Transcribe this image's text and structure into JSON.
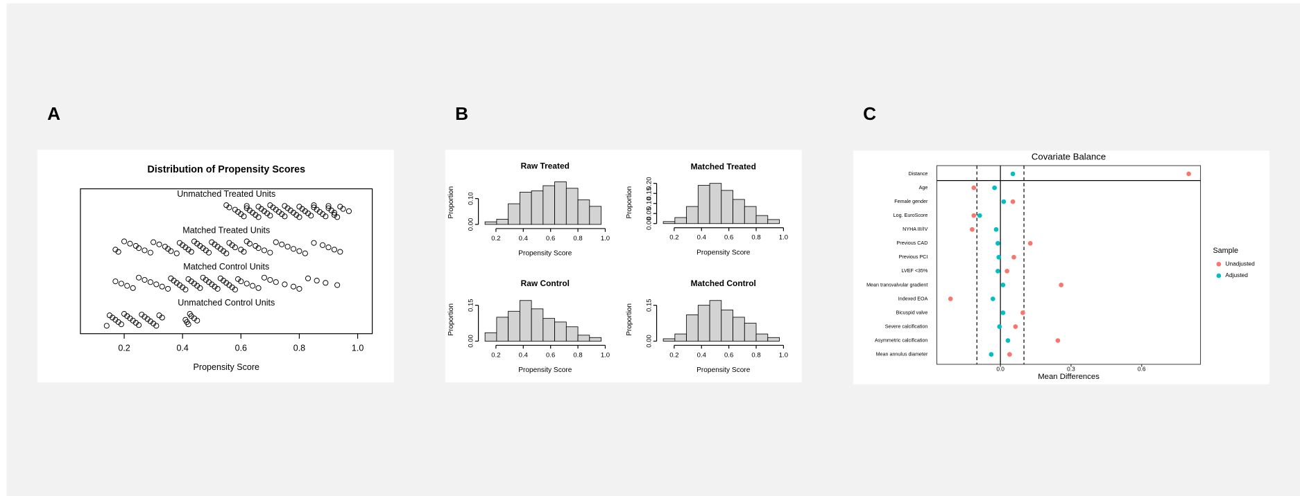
{
  "panel_labels": [
    "A",
    "B",
    "C"
  ],
  "chart_data": [
    {
      "type": "strip",
      "title": "Distribution of Propensity Scores",
      "x_label": "Propensity Score",
      "xlim": [
        0.05,
        1.05
      ],
      "xticks": [
        0.2,
        0.4,
        0.6,
        0.8,
        {
          "value": 1.0,
          "label": "1.0"
        }
      ],
      "series": [
        {
          "name": "Unmatched Treated Units",
          "color": "#000000",
          "values": [
            0.55,
            0.56,
            0.58,
            0.59,
            0.6,
            0.61,
            0.62,
            0.62,
            0.63,
            0.64,
            0.65,
            0.66,
            0.66,
            0.67,
            0.68,
            0.69,
            0.7,
            0.7,
            0.71,
            0.72,
            0.73,
            0.74,
            0.75,
            0.75,
            0.76,
            0.77,
            0.78,
            0.79,
            0.8,
            0.8,
            0.81,
            0.82,
            0.83,
            0.84,
            0.85,
            0.85,
            0.86,
            0.87,
            0.88,
            0.89,
            0.9,
            0.9,
            0.91,
            0.92,
            0.92,
            0.93,
            0.94,
            0.95,
            0.97
          ]
        },
        {
          "name": "Matched Treated Units",
          "color": "#000000",
          "values": [
            0.17,
            0.18,
            0.2,
            0.22,
            0.24,
            0.25,
            0.27,
            0.29,
            0.3,
            0.32,
            0.34,
            0.35,
            0.36,
            0.38,
            0.39,
            0.4,
            0.41,
            0.42,
            0.43,
            0.44,
            0.45,
            0.46,
            0.47,
            0.48,
            0.49,
            0.5,
            0.51,
            0.52,
            0.53,
            0.54,
            0.55,
            0.56,
            0.57,
            0.58,
            0.6,
            0.61,
            0.62,
            0.63,
            0.65,
            0.66,
            0.68,
            0.7,
            0.72,
            0.74,
            0.76,
            0.78,
            0.8,
            0.82,
            0.85,
            0.88,
            0.9,
            0.92,
            0.94
          ]
        },
        {
          "name": "Matched Control Units",
          "color": "#000000",
          "values": [
            0.17,
            0.19,
            0.21,
            0.23,
            0.25,
            0.27,
            0.29,
            0.31,
            0.33,
            0.35,
            0.36,
            0.37,
            0.38,
            0.39,
            0.4,
            0.41,
            0.42,
            0.43,
            0.44,
            0.45,
            0.46,
            0.47,
            0.48,
            0.49,
            0.5,
            0.51,
            0.52,
            0.53,
            0.54,
            0.55,
            0.56,
            0.57,
            0.58,
            0.59,
            0.6,
            0.62,
            0.64,
            0.66,
            0.68,
            0.7,
            0.72,
            0.75,
            0.78,
            0.8,
            0.83,
            0.86,
            0.89,
            0.93
          ]
        },
        {
          "name": "Unmatched Control Units",
          "color": "#000000",
          "values": [
            0.14,
            0.15,
            0.16,
            0.17,
            0.18,
            0.19,
            0.2,
            0.21,
            0.22,
            0.23,
            0.24,
            0.25,
            0.26,
            0.27,
            0.28,
            0.29,
            0.3,
            0.31,
            0.32,
            0.33,
            0.41,
            0.415,
            0.42,
            0.425,
            0.43,
            0.44,
            0.45
          ]
        }
      ]
    },
    {
      "type": "histogram",
      "title": "Raw Treated",
      "x_label": "Propensity Score",
      "y_label": "Proportion",
      "color": "#d3d3d3",
      "bins": [
        0.12,
        0.205,
        0.29,
        0.375,
        0.46,
        0.545,
        0.63,
        0.715,
        0.8,
        0.885,
        0.97
      ],
      "values": [
        0.01,
        0.02,
        0.08,
        0.125,
        0.13,
        0.15,
        0.165,
        0.14,
        0.095,
        0.07
      ],
      "xlim": [
        0.12,
        1.0
      ],
      "xticks": [
        0.2,
        0.4,
        0.6,
        0.8,
        {
          "value": 1.0,
          "label": "1.0"
        }
      ],
      "ylim": [
        0,
        0.17
      ],
      "yticks": [
        {
          "value": 0,
          "label": "0.00"
        },
        {
          "value": 0.1,
          "label": "0.10"
        }
      ]
    },
    {
      "type": "histogram",
      "title": "Matched Treated",
      "x_label": "Propensity Score",
      "y_label": "Proportion",
      "color": "#d3d3d3",
      "bins": [
        0.12,
        0.205,
        0.29,
        0.375,
        0.46,
        0.545,
        0.63,
        0.715,
        0.8,
        0.885,
        0.97
      ],
      "values": [
        0.01,
        0.03,
        0.085,
        0.19,
        0.2,
        0.165,
        0.12,
        0.085,
        0.04,
        0.02
      ],
      "xlim": [
        0.12,
        1.0
      ],
      "xticks": [
        0.2,
        0.4,
        0.6,
        0.8,
        {
          "value": 1.0,
          "label": "1.0"
        }
      ],
      "ylim": [
        0,
        0.21
      ],
      "yticks": [
        {
          "value": 0,
          "label": "0.00"
        },
        {
          "value": 0.05,
          "label": "0.05"
        },
        {
          "value": 0.1,
          "label": "0.10"
        },
        0.15,
        {
          "value": 0.2,
          "label": "0.20"
        }
      ]
    },
    {
      "type": "histogram",
      "title": "Raw Control",
      "x_label": "Propensity Score",
      "y_label": "Proportion",
      "color": "#d3d3d3",
      "bins": [
        0.12,
        0.205,
        0.29,
        0.375,
        0.46,
        0.545,
        0.63,
        0.715,
        0.8,
        0.885,
        0.97
      ],
      "values": [
        0.035,
        0.1,
        0.125,
        0.17,
        0.135,
        0.095,
        0.08,
        0.06,
        0.025,
        0.015
      ],
      "xlim": [
        0.12,
        1.0
      ],
      "xticks": [
        0.2,
        0.4,
        0.6,
        0.8,
        {
          "value": 1.0,
          "label": "1.0"
        }
      ],
      "ylim": [
        0,
        0.18
      ],
      "yticks": [
        {
          "value": 0,
          "label": "0.00"
        },
        0.15
      ]
    },
    {
      "type": "histogram",
      "title": "Matched Control",
      "x_label": "Propensity Score",
      "y_label": "Proportion",
      "color": "#d3d3d3",
      "bins": [
        0.12,
        0.205,
        0.29,
        0.375,
        0.46,
        0.545,
        0.63,
        0.715,
        0.8,
        0.885,
        0.97
      ],
      "values": [
        0.01,
        0.03,
        0.11,
        0.15,
        0.17,
        0.13,
        0.1,
        0.075,
        0.03,
        0.015
      ],
      "xlim": [
        0.12,
        1.0
      ],
      "xticks": [
        0.2,
        0.4,
        0.6,
        0.8,
        {
          "value": 1.0,
          "label": "1.0"
        }
      ],
      "ylim": [
        0,
        0.18
      ],
      "yticks": [
        {
          "value": 0,
          "label": "0.00"
        },
        0.15
      ]
    },
    {
      "type": "dot",
      "title": "Covariate Balance",
      "x_label": "Mean Differences",
      "legend_title": "Sample",
      "legend": "right",
      "categories": [
        "Distance",
        "Age",
        "Female gender",
        "Log. EuroScore",
        "NYHA III/IV",
        "Previous CAD",
        "Previous PCI",
        "LVEF <35%",
        "Mean transvalvular gradient",
        "Indexed EOA",
        "Bicuspid valve",
        "Severe calcification",
        "Asymmetric calcification",
        "Mean annulus diameter"
      ],
      "thresholds": [
        -0.1,
        0.1
      ],
      "xlim": [
        -0.27,
        0.85
      ],
      "xticks": [
        {
          "value": 0,
          "label": "0.0"
        },
        0.3,
        0.6
      ],
      "series": [
        {
          "name": "Unadjusted",
          "color": "#F8766D",
          "values": [
            0.8,
            -0.113,
            0.053,
            -0.113,
            -0.12,
            0.127,
            0.057,
            0.028,
            0.258,
            -0.212,
            0.095,
            0.064,
            0.244,
            0.039
          ]
        },
        {
          "name": "Adjusted",
          "color": "#00BFC4",
          "values": [
            0.053,
            -0.025,
            0.014,
            -0.088,
            -0.018,
            -0.011,
            -0.007,
            -0.011,
            0.011,
            -0.032,
            0.011,
            -0.004,
            0.032,
            -0.039
          ]
        }
      ]
    }
  ]
}
